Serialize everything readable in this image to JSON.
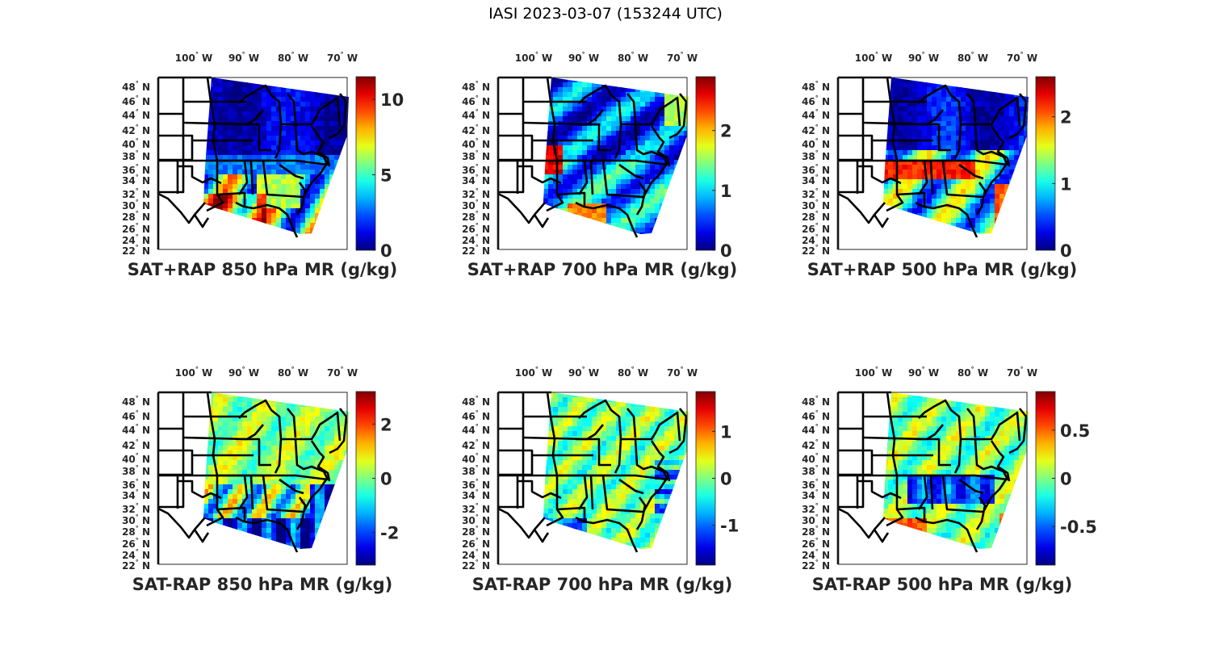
{
  "figure": {
    "suptitle": "IASI 2023-03-07 (153244 UTC)"
  },
  "chart_data": [
    {
      "type": "heatmap",
      "title": "SAT+RAP 850 hPa MR (g/kg)",
      "xlabel": "",
      "ylabel": "",
      "x_ticks": [
        "100° W",
        "90° W",
        "80° W",
        "70° W"
      ],
      "y_ticks": [
        "48° N",
        "46° N",
        "44° N",
        "42° N",
        "40° N",
        "38° N",
        "36° N",
        "34° N",
        "32° N",
        "30° N",
        "28° N",
        "26° N",
        "24° N",
        "22° N"
      ],
      "colormap": "jet",
      "clim": [
        0,
        11.5
      ],
      "colorbar_ticks": [
        0,
        5,
        10
      ],
      "colorbar_tick_labels": [
        "0",
        "5",
        "10"
      ],
      "description": "Low values (dark blue) over northern US; high values (orange/red) over Gulf coast and southern plains"
    },
    {
      "type": "heatmap",
      "title": "SAT+RAP 700 hPa MR (g/kg)",
      "xlabel": "",
      "ylabel": "",
      "x_ticks": [
        "100° W",
        "90° W",
        "80° W",
        "70° W"
      ],
      "y_ticks": [
        "48° N",
        "46° N",
        "44° N",
        "42° N",
        "40° N",
        "38° N",
        "36° N",
        "34° N",
        "32° N",
        "30° N",
        "28° N",
        "26° N",
        "24° N",
        "22° N"
      ],
      "colormap": "jet",
      "clim": [
        0,
        2.9
      ],
      "colorbar_ticks": [
        0,
        1,
        2
      ],
      "colorbar_tick_labels": [
        "0",
        "1",
        "2"
      ],
      "description": "Mostly blue; dark red patch over Kansas/Oklahoma border, red along Gulf coast and Atlantic offshore"
    },
    {
      "type": "heatmap",
      "title": "SAT+RAP 500 hPa MR (g/kg)",
      "xlabel": "",
      "ylabel": "",
      "x_ticks": [
        "100° W",
        "90° W",
        "80° W",
        "70° W"
      ],
      "y_ticks": [
        "48° N",
        "46° N",
        "44° N",
        "42° N",
        "40° N",
        "38° N",
        "36° N",
        "34° N",
        "32° N",
        "30° N",
        "28° N",
        "26° N",
        "24° N",
        "22° N"
      ],
      "colormap": "jet",
      "clim": [
        0,
        2.6
      ],
      "colorbar_ticks": [
        0,
        1,
        2
      ],
      "colorbar_tick_labels": [
        "0",
        "1",
        "2"
      ],
      "description": "Blue north; red band along ~36°N from Oklahoma to Tennessee, red offshore Georgia/Carolinas"
    },
    {
      "type": "heatmap",
      "title": "SAT-RAP 850 hPa MR (g/kg)",
      "xlabel": "",
      "ylabel": "",
      "x_ticks": [
        "100° W",
        "90° W",
        "80° W",
        "70° W"
      ],
      "y_ticks": [
        "48° N",
        "46° N",
        "44° N",
        "42° N",
        "40° N",
        "38° N",
        "36° N",
        "34° N",
        "32° N",
        "30° N",
        "28° N",
        "26° N",
        "24° N",
        "22° N"
      ],
      "colormap": "jet",
      "clim": [
        -3.2,
        3.2
      ],
      "colorbar_ticks": [
        -2,
        0,
        2
      ],
      "colorbar_tick_labels": [
        "-2",
        "0",
        "2"
      ],
      "description": "Near zero (green) north; negative (blue) over Gulf and southeast coast with scattered positive spots"
    },
    {
      "type": "heatmap",
      "title": "SAT-RAP 700 hPa MR (g/kg)",
      "xlabel": "",
      "ylabel": "",
      "x_ticks": [
        "100° W",
        "90° W",
        "80° W",
        "70° W"
      ],
      "y_ticks": [
        "48° N",
        "46° N",
        "44° N",
        "42° N",
        "40° N",
        "38° N",
        "36° N",
        "34° N",
        "32° N",
        "30° N",
        "28° N",
        "26° N",
        "24° N",
        "22° N"
      ],
      "colormap": "jet",
      "clim": [
        -1.85,
        1.85
      ],
      "colorbar_ticks": [
        -1,
        0,
        1
      ],
      "colorbar_tick_labels": [
        "-1",
        "0",
        "1"
      ],
      "description": "Mostly near zero (green); negative patches along Atlantic coast and Gulf, few positive spots"
    },
    {
      "type": "heatmap",
      "title": "SAT-RAP 500 hPa MR (g/kg)",
      "xlabel": "",
      "ylabel": "",
      "x_ticks": [
        "100° W",
        "90° W",
        "80° W",
        "70° W"
      ],
      "y_ticks": [
        "48° N",
        "46° N",
        "44° N",
        "42° N",
        "40° N",
        "38° N",
        "36° N",
        "34° N",
        "32° N",
        "30° N",
        "28° N",
        "26° N",
        "24° N",
        "22° N"
      ],
      "colormap": "jet",
      "clim": [
        -0.9,
        0.9
      ],
      "colorbar_ticks": [
        -0.5,
        0,
        0.5
      ],
      "colorbar_tick_labels": [
        "-0.5",
        "0",
        "0.5"
      ],
      "description": "Near zero north; negative (blue) band over Tennessee/Georgia; positive (red) along Gulf coast and offshore southeast"
    }
  ]
}
